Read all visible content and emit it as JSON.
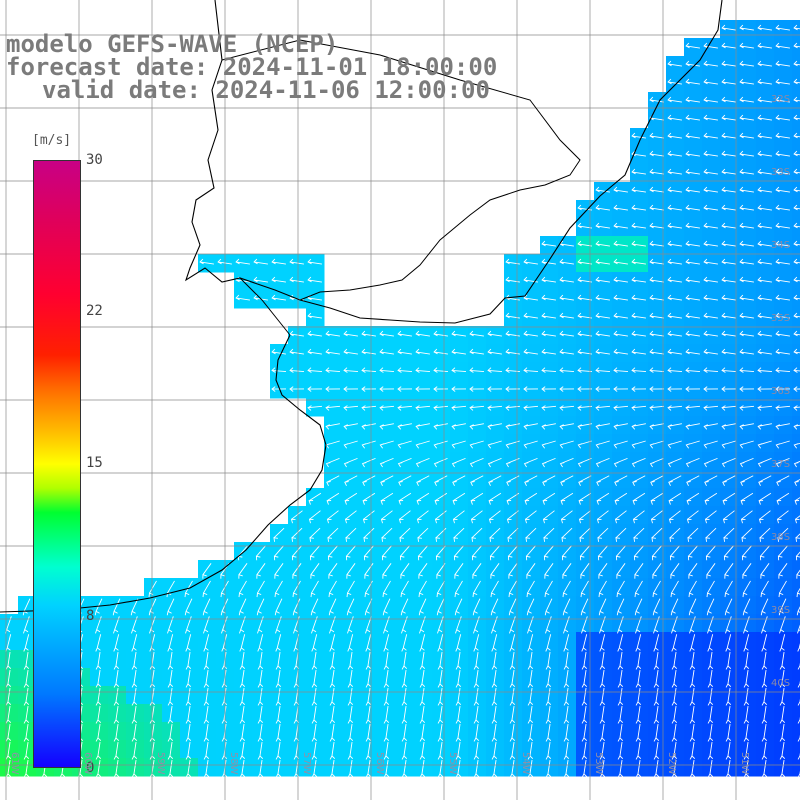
{
  "header": {
    "title": "modelo GEFS-WAVE (NCEP)",
    "forecast": "forecast date: 2024-11-01 18:00:00",
    "valid": "valid date: 2024-11-06 12:00:00"
  },
  "colorbar": {
    "unit": "[m/s]",
    "min": 0,
    "max": 30,
    "ticks": [
      "30",
      "22",
      "15",
      "8",
      "0"
    ],
    "colors": [
      "#1400ff",
      "#0078ff",
      "#00d2ff",
      "#00ffd0",
      "#00ff30",
      "#ffff00",
      "#ff7000",
      "#ff0030",
      "#c80085"
    ]
  },
  "map": {
    "lat_labels": [
      "32S",
      "33S",
      "34S",
      "35S",
      "36S",
      "37S",
      "38S",
      "39S",
      "40S"
    ],
    "lon_labels": [
      "61W",
      "60W",
      "59W",
      "58W",
      "57W",
      "56W",
      "55W",
      "54W",
      "53W",
      "52W",
      "51W"
    ],
    "lon_range": [
      -62,
      -51
    ],
    "lat_range": [
      -41,
      -31
    ],
    "wind_direction": "toward southwest",
    "grid_color": "#8a8a8a",
    "coast_color": "#000000",
    "arrow_color": "#ffffff"
  }
}
